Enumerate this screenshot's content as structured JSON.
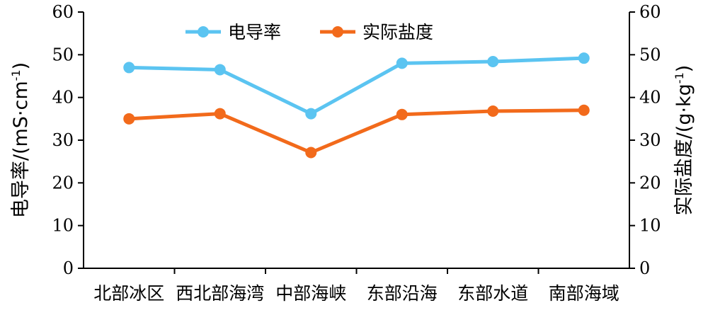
{
  "chart_data": {
    "type": "line",
    "categories": [
      "北部冰区",
      "西北部海湾",
      "中部海峡",
      "东部沿海",
      "东部水道",
      "南部海域"
    ],
    "series": [
      {
        "name": "电导率",
        "axis": "left",
        "color": "#5BC4F1",
        "values": [
          47.0,
          46.5,
          36.2,
          48.0,
          48.4,
          49.2
        ]
      },
      {
        "name": "实际盐度",
        "axis": "right",
        "color": "#F26A1B",
        "values": [
          35.0,
          36.2,
          27.1,
          36.0,
          36.8,
          37.0
        ]
      }
    ],
    "ylabel_left": "电导率/(mS·cm",
    "ylabel_left_sup": "-1",
    "ylabel_left_end": ")",
    "ylabel_right": "实际盐度/(g·kg",
    "ylabel_right_sup": "-1",
    "ylabel_right_end": ")",
    "ylim_left": [
      0,
      60
    ],
    "ylim_right": [
      0,
      60
    ],
    "yticks": [
      "0",
      "10",
      "20",
      "30",
      "40",
      "50",
      "60"
    ],
    "grid": false,
    "legend_position": "top-center"
  }
}
